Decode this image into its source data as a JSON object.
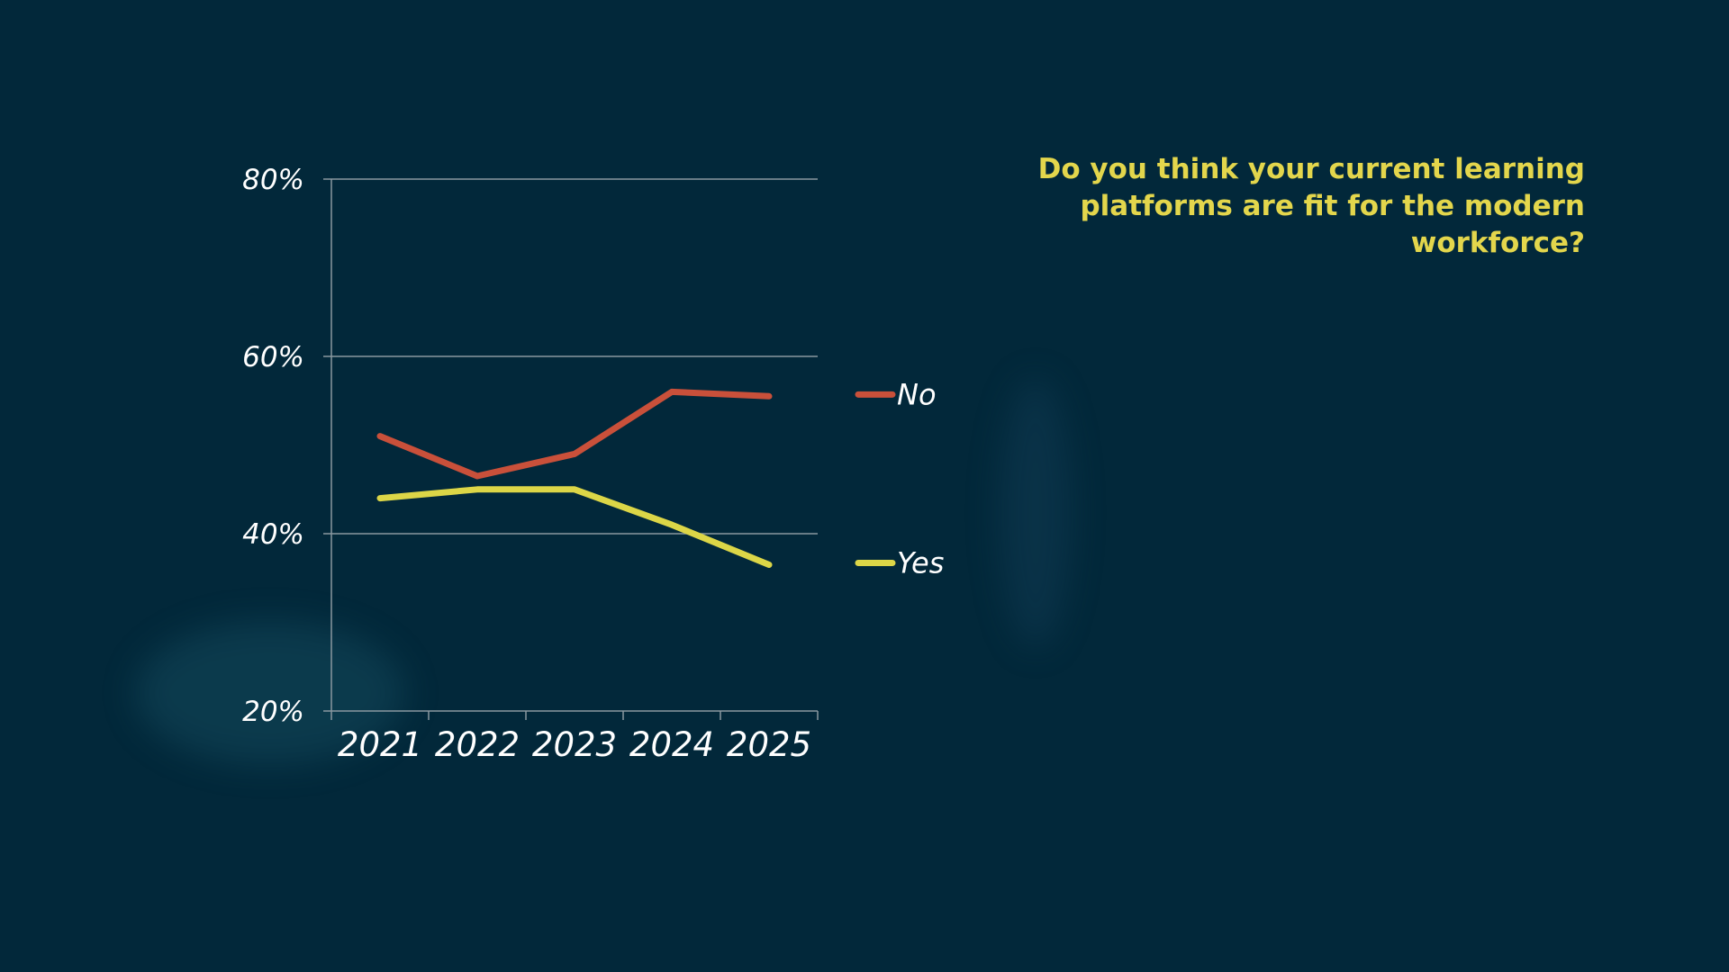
{
  "question": "Do you think your current learning platforms are fit for the modern workforce?",
  "colors": {
    "background": "#02283a",
    "question_text": "#e3d64c",
    "no_series": "#c9503a",
    "yes_series": "#dcd647",
    "grid": "#8a98a0"
  },
  "chart_data": {
    "type": "line",
    "x": [
      "2021",
      "2022",
      "2023",
      "2024",
      "2025"
    ],
    "series": [
      {
        "name": "No",
        "values": [
          51,
          46.5,
          49,
          56,
          55.5
        ]
      },
      {
        "name": "Yes",
        "values": [
          44,
          45,
          45,
          41,
          36.5
        ]
      }
    ],
    "yticks": [
      "20%",
      "40%",
      "60%",
      "80%"
    ],
    "ylim": [
      20,
      80
    ],
    "grid": true,
    "legend": "right"
  }
}
